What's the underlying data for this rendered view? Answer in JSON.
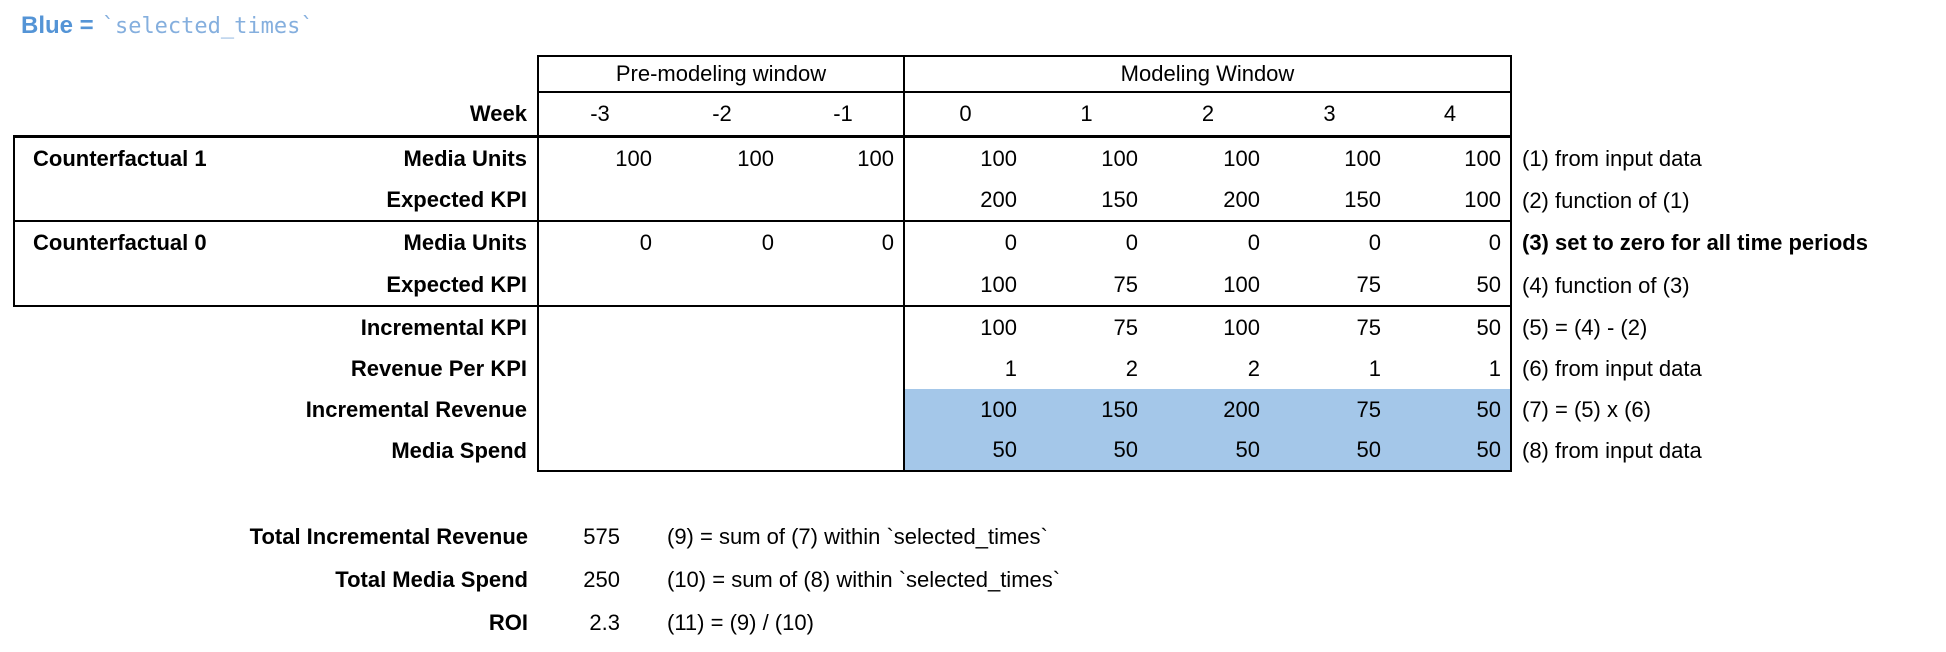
{
  "legend": {
    "prefix": "Blue =",
    "code": "`selected_times`"
  },
  "table": {
    "window_headers": {
      "pre": "Pre-modeling window",
      "modeling": "Modeling Window"
    },
    "week_label": "Week",
    "weeks": [
      "-3",
      "-2",
      "-1",
      "0",
      "1",
      "2",
      "3",
      "4"
    ],
    "rows": [
      {
        "group": "Counterfactual 1",
        "label": "Media Units",
        "pre": [
          "100",
          "100",
          "100"
        ],
        "model": [
          "100",
          "100",
          "100",
          "100",
          "100"
        ],
        "note": "(1) from input data"
      },
      {
        "group": "",
        "label": "Expected KPI",
        "pre": [
          "",
          "",
          ""
        ],
        "model": [
          "200",
          "150",
          "200",
          "150",
          "100"
        ],
        "note": "(2) function of (1)"
      },
      {
        "group": "Counterfactual 0",
        "label": "Media Units",
        "pre": [
          "0",
          "0",
          "0"
        ],
        "model": [
          "0",
          "0",
          "0",
          "0",
          "0"
        ],
        "note": "(3) set to zero for all time periods"
      },
      {
        "group": "",
        "label": "Expected KPI",
        "pre": [
          "",
          "",
          ""
        ],
        "model": [
          "100",
          "75",
          "100",
          "75",
          "50"
        ],
        "note": "(4) function of (3)"
      },
      {
        "label": "Incremental KPI",
        "pre": [
          "",
          "",
          ""
        ],
        "model": [
          "100",
          "75",
          "100",
          "75",
          "50"
        ],
        "note": "(5) = (4) - (2)"
      },
      {
        "label": "Revenue Per KPI",
        "pre": [
          "",
          "",
          ""
        ],
        "model": [
          "1",
          "2",
          "2",
          "1",
          "1"
        ],
        "note": "(6) from input data"
      },
      {
        "label": "Incremental Revenue",
        "pre": [
          "",
          "",
          ""
        ],
        "model": [
          "100",
          "150",
          "200",
          "75",
          "50"
        ],
        "note": "(7) = (5) x (6)",
        "highlighted": true
      },
      {
        "label": "Media Spend",
        "pre": [
          "",
          "",
          ""
        ],
        "model": [
          "50",
          "50",
          "50",
          "50",
          "50"
        ],
        "note": "(8) from input data",
        "highlighted": true
      }
    ]
  },
  "summary": {
    "rows": [
      {
        "label": "Total Incremental Revenue",
        "value": "575",
        "note": "(9) = sum of (7) within `selected_times`"
      },
      {
        "label": "Total Media Spend",
        "value": "250",
        "note": "(10) = sum of (8) within `selected_times`"
      },
      {
        "label": "ROI",
        "value": "2.3",
        "note": "(11) = (9) / (10)"
      }
    ]
  },
  "colors": {
    "highlight_blue": "#A4C7E9",
    "legend_text_blue": "#5494D6",
    "legend_code_blue": "#85AFDE"
  }
}
